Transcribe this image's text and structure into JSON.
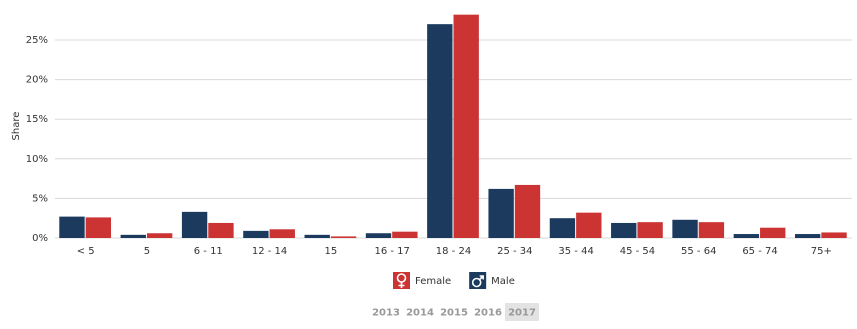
{
  "chart_data": {
    "type": "bar",
    "y_label": "Share",
    "categories": [
      "< 5",
      "5",
      "6 - 11",
      "12 - 14",
      "15",
      "16 - 17",
      "18 - 24",
      "25 - 34",
      "35 - 44",
      "45 - 54",
      "55 - 64",
      "65 - 74",
      "75+"
    ],
    "series": [
      {
        "name": "Male",
        "color": "#1b3a5e",
        "values": [
          2.7,
          0.4,
          3.3,
          0.9,
          0.4,
          0.6,
          27.0,
          6.2,
          2.5,
          1.9,
          2.3,
          0.5,
          0.5
        ]
      },
      {
        "name": "Female",
        "color": "#cc3434",
        "values": [
          2.6,
          0.6,
          1.9,
          1.1,
          0.2,
          0.8,
          28.2,
          6.7,
          3.2,
          2.0,
          2.0,
          1.3,
          0.7
        ]
      }
    ],
    "ylim": [
      0,
      28.5
    ],
    "yticks": [
      {
        "value": 0,
        "label": "0%"
      },
      {
        "value": 5,
        "label": "5%"
      },
      {
        "value": 10,
        "label": "10%"
      },
      {
        "value": 15,
        "label": "15%"
      },
      {
        "value": 20,
        "label": "20%"
      },
      {
        "value": 25,
        "label": "25%"
      }
    ],
    "grid": true,
    "years": [
      {
        "label": "2013"
      },
      {
        "label": "2014"
      },
      {
        "label": "2015"
      },
      {
        "label": "2016"
      },
      {
        "label": "2017",
        "active": true
      }
    ]
  }
}
